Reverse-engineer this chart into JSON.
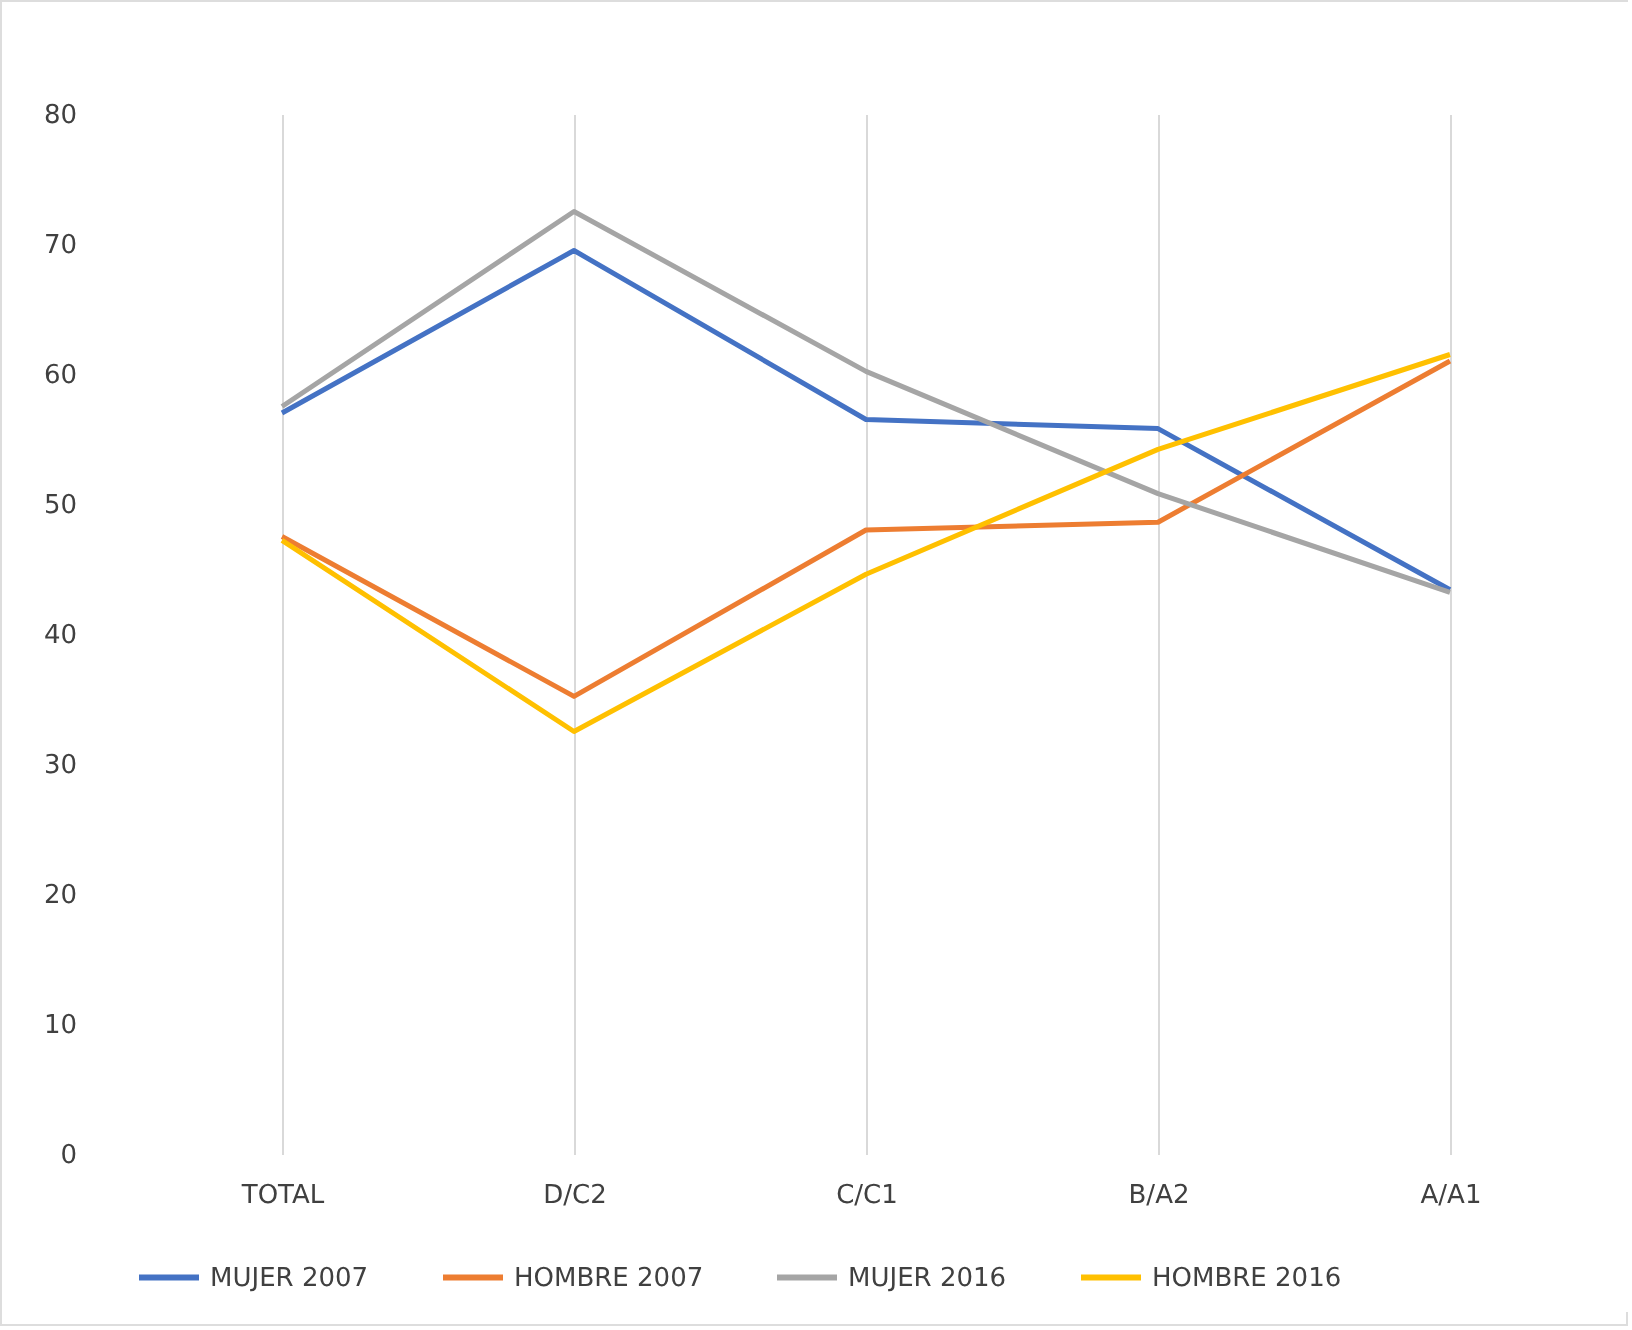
{
  "chart_data": {
    "type": "line",
    "categories": [
      "TOTAL",
      "D/C2",
      "C/C1",
      "B/A2",
      "A/A1"
    ],
    "series": [
      {
        "name": "MUJER 2007",
        "color": "#4472c4",
        "values": [
          57,
          69.5,
          56.5,
          55.8,
          43.4
        ]
      },
      {
        "name": "HOMBRE 2007",
        "color": "#ed7d31",
        "values": [
          47.5,
          35.2,
          48,
          48.6,
          61
        ]
      },
      {
        "name": "MUJER 2016",
        "color": "#a5a5a5",
        "values": [
          57.5,
          72.5,
          60.2,
          50.8,
          43.2
        ]
      },
      {
        "name": "HOMBRE 2016",
        "color": "#ffc000",
        "values": [
          47.2,
          32.5,
          44.6,
          54.2,
          61.5
        ]
      }
    ],
    "ylim": [
      0,
      80
    ],
    "yticks": [
      0,
      10,
      20,
      30,
      40,
      50,
      60,
      70,
      80
    ],
    "grid": "x",
    "legend": "bottom",
    "marker": "none",
    "line_style": "solid"
  }
}
